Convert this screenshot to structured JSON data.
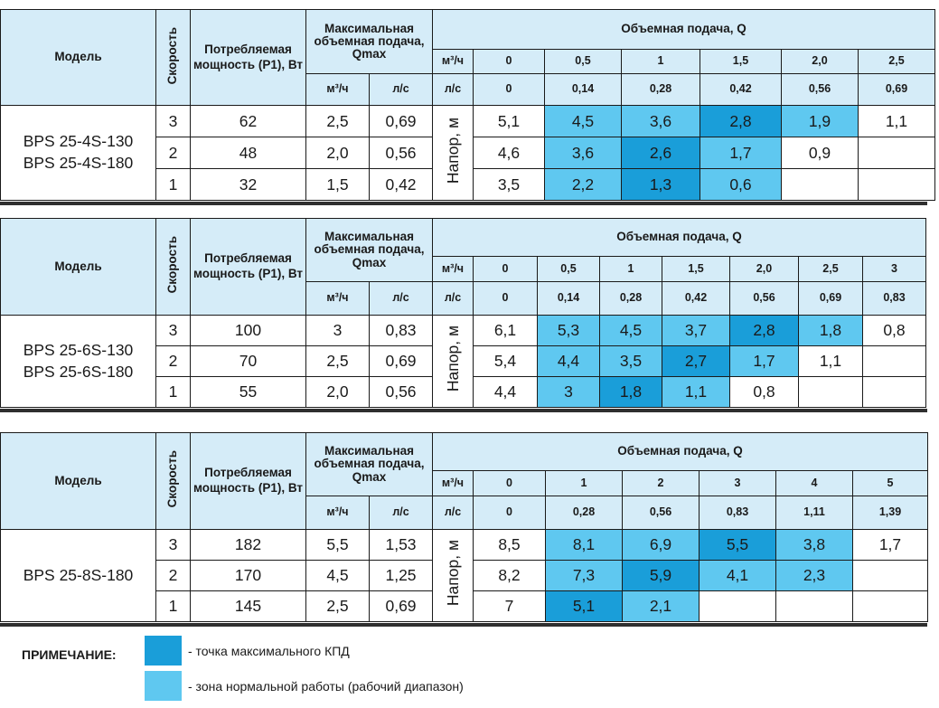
{
  "header": {
    "model": "Модель",
    "speed": "Скорость",
    "power": "Потребляемая мощность (P1), Вт",
    "qmax": "Максимальная объемная подача, Qmax",
    "flow_title": "Объемная подача, Q",
    "unit_m3h": "м³/ч",
    "unit_ls": "л/с",
    "head_label": "Напор, м"
  },
  "tables": [
    {
      "models": [
        "BPS 25-4S-130",
        "BPS 25-4S-180"
      ],
      "q_m3h": [
        "0",
        "0,5",
        "1",
        "1,5",
        "2,0",
        "2,5"
      ],
      "q_ls": [
        "0",
        "0,14",
        "0,28",
        "0,42",
        "0,56",
        "0,69"
      ],
      "rows": [
        {
          "speed": "3",
          "power": "62",
          "qmax_m3h": "2,5",
          "qmax_ls": "0,69",
          "head": [
            "5,1",
            "4,5",
            "3,6",
            "2,8",
            "1,9",
            "1,1"
          ],
          "zone": [
            "",
            "norm",
            "norm",
            "best",
            "norm",
            ""
          ]
        },
        {
          "speed": "2",
          "power": "48",
          "qmax_m3h": "2,0",
          "qmax_ls": "0,56",
          "head": [
            "4,6",
            "3,6",
            "2,6",
            "1,7",
            "0,9",
            ""
          ],
          "zone": [
            "",
            "norm",
            "best",
            "norm",
            "",
            ""
          ]
        },
        {
          "speed": "1",
          "power": "32",
          "qmax_m3h": "1,5",
          "qmax_ls": "0,42",
          "head": [
            "3,5",
            "2,2",
            "1,3",
            "0,6",
            "",
            ""
          ],
          "zone": [
            "",
            "norm",
            "best",
            "norm",
            "",
            ""
          ]
        }
      ]
    },
    {
      "models": [
        "BPS 25-6S-130",
        "BPS 25-6S-180"
      ],
      "q_m3h": [
        "0",
        "0,5",
        "1",
        "1,5",
        "2,0",
        "2,5",
        "3"
      ],
      "q_ls": [
        "0",
        "0,14",
        "0,28",
        "0,42",
        "0,56",
        "0,69",
        "0,83"
      ],
      "rows": [
        {
          "speed": "3",
          "power": "100",
          "qmax_m3h": "3",
          "qmax_ls": "0,83",
          "head": [
            "6,1",
            "5,3",
            "4,5",
            "3,7",
            "2,8",
            "1,8",
            "0,8"
          ],
          "zone": [
            "",
            "norm",
            "norm",
            "norm",
            "best",
            "norm",
            ""
          ]
        },
        {
          "speed": "2",
          "power": "70",
          "qmax_m3h": "2,5",
          "qmax_ls": "0,69",
          "head": [
            "5,4",
            "4,4",
            "3,5",
            "2,7",
            "1,7",
            "1,1",
            ""
          ],
          "zone": [
            "",
            "norm",
            "norm",
            "best",
            "norm",
            "",
            ""
          ]
        },
        {
          "speed": "1",
          "power": "55",
          "qmax_m3h": "2,0",
          "qmax_ls": "0,56",
          "head": [
            "4,4",
            "3",
            "1,8",
            "1,1",
            "0,8",
            "",
            ""
          ],
          "zone": [
            "",
            "norm",
            "best",
            "norm",
            "",
            "",
            ""
          ]
        }
      ]
    },
    {
      "models": [
        "BPS 25-8S-180"
      ],
      "q_m3h": [
        "0",
        "1",
        "2",
        "3",
        "4",
        "5"
      ],
      "q_ls": [
        "0",
        "0,28",
        "0,56",
        "0,83",
        "1,11",
        "1,39"
      ],
      "rows": [
        {
          "speed": "3",
          "power": "182",
          "qmax_m3h": "5,5",
          "qmax_ls": "1,53",
          "head": [
            "8,5",
            "8,1",
            "6,9",
            "5,5",
            "3,8",
            "1,7"
          ],
          "zone": [
            "",
            "norm",
            "norm",
            "best",
            "norm",
            ""
          ]
        },
        {
          "speed": "2",
          "power": "170",
          "qmax_m3h": "4,5",
          "qmax_ls": "1,25",
          "head": [
            "8,2",
            "7,3",
            "5,9",
            "4,1",
            "2,3",
            ""
          ],
          "zone": [
            "",
            "norm",
            "best",
            "norm",
            "norm",
            ""
          ]
        },
        {
          "speed": "1",
          "power": "145",
          "qmax_m3h": "2,5",
          "qmax_ls": "0,69",
          "head": [
            "7",
            "5,1",
            "2,1",
            "",
            "",
            ""
          ],
          "zone": [
            "",
            "best",
            "norm",
            "",
            "",
            ""
          ]
        }
      ]
    }
  ],
  "legend": {
    "title": "ПРИМЕЧАНИЕ:",
    "best_text": "- точка максимального КПД",
    "norm_text": "- зона нормальной работы (рабочий диапазон)"
  },
  "colors": {
    "best": "#1a9ed9",
    "norm": "#5fc8f0",
    "header_bg": "#d5ecf8"
  }
}
